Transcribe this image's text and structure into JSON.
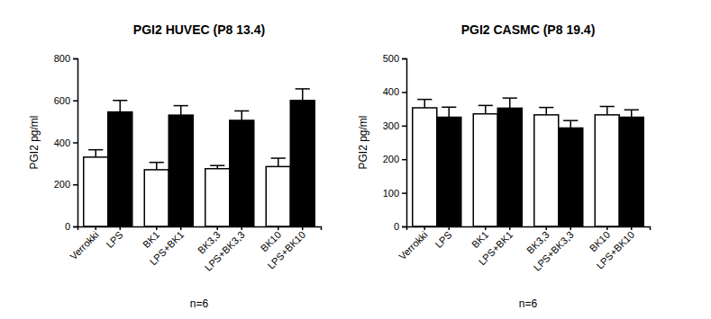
{
  "chart_data": [
    {
      "type": "bar",
      "title": "PGI2 HUVEC (P8 13.4)",
      "y_label": "PGI2 pg/ml",
      "x_label": "n=6",
      "categories": [
        "Verrokki",
        "LPS",
        "BK1",
        "LPS+BK1",
        "BK3,3",
        "LPS+BK3,3",
        "BK10",
        "LPS+BK10"
      ],
      "values": [
        330,
        545,
        270,
        530,
        275,
        505,
        285,
        600
      ],
      "errors": [
        35,
        55,
        35,
        45,
        15,
        45,
        40,
        55
      ],
      "colors": [
        "#ffffff",
        "#000000",
        "#ffffff",
        "#000000",
        "#ffffff",
        "#000000",
        "#ffffff",
        "#000000"
      ],
      "ylim": [
        0,
        800
      ],
      "yticks": [
        0,
        200,
        400,
        600,
        800
      ]
    },
    {
      "type": "bar",
      "title": "PGI2 CASMC (P8 19.4)",
      "y_label": "PGI2 pg/ml",
      "x_label": "n=6",
      "categories": [
        "Verrokki",
        "LPS",
        "BK1",
        "LPS+BK1",
        "BK3,3",
        "LPS+BK3,3",
        "BK10",
        "LPS+BK10"
      ],
      "values": [
        353,
        325,
        335,
        352,
        332,
        293,
        332,
        325
      ],
      "errors": [
        25,
        30,
        25,
        30,
        22,
        22,
        25,
        22
      ],
      "colors": [
        "#ffffff",
        "#000000",
        "#ffffff",
        "#000000",
        "#ffffff",
        "#000000",
        "#ffffff",
        "#000000"
      ],
      "ylim": [
        0,
        500
      ],
      "yticks": [
        0,
        100,
        200,
        300,
        400,
        500
      ]
    }
  ]
}
